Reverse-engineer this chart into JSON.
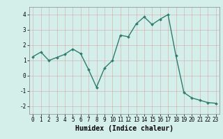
{
  "x": [
    0,
    1,
    2,
    3,
    4,
    5,
    6,
    7,
    8,
    9,
    10,
    11,
    12,
    13,
    14,
    15,
    16,
    17,
    18,
    19,
    20,
    21,
    22,
    23
  ],
  "y": [
    1.25,
    1.55,
    1.0,
    1.2,
    1.4,
    1.75,
    1.45,
    0.4,
    -0.75,
    0.5,
    1.0,
    2.65,
    2.55,
    3.4,
    3.85,
    3.35,
    3.7,
    4.0,
    1.3,
    -1.1,
    -1.45,
    -1.6,
    -1.75,
    -1.8
  ],
  "line_color": "#2e7d6e",
  "marker": "D",
  "markersize": 2.0,
  "linewidth": 1.0,
  "xlabel": "Humidex (Indice chaleur)",
  "xlabel_fontsize": 7,
  "ylim": [
    -2.5,
    4.5
  ],
  "xlim": [
    -0.5,
    23.5
  ],
  "yticks": [
    -2,
    -1,
    0,
    1,
    2,
    3,
    4
  ],
  "xticks": [
    0,
    1,
    2,
    3,
    4,
    5,
    6,
    7,
    8,
    9,
    10,
    11,
    12,
    13,
    14,
    15,
    16,
    17,
    18,
    19,
    20,
    21,
    22,
    23
  ],
  "background_color": "#d4eeea",
  "grid_color_major": "#c0ddd8",
  "grid_color_minor": "#dff0ee",
  "tick_fontsize": 5.5,
  "spine_color": "#888888"
}
